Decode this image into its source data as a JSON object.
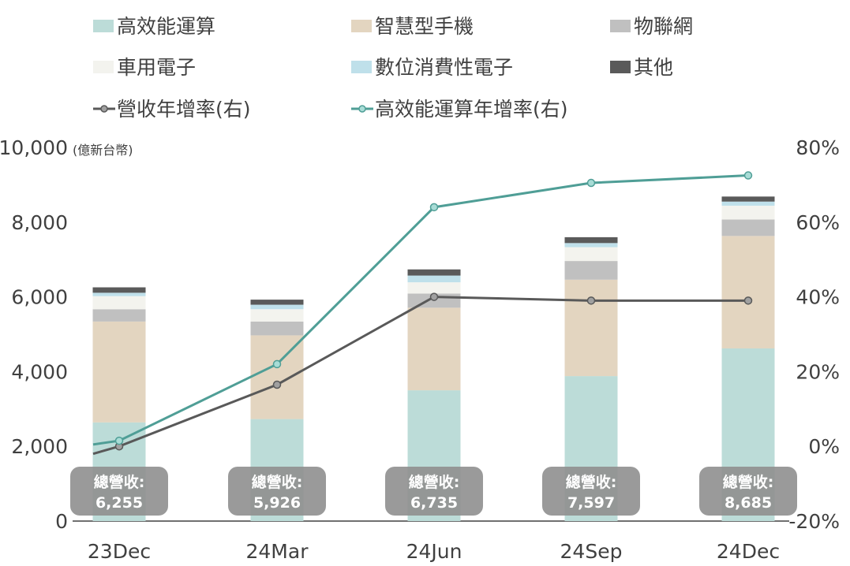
{
  "chart_data": {
    "type": "bar",
    "stacked": true,
    "categories": [
      "23Dec",
      "24Mar",
      "24Jun",
      "24Sep",
      "24Dec"
    ],
    "unit_label": "(億新台幣)",
    "y_left": {
      "min": 0,
      "max": 10000,
      "ticks": [
        "0",
        "2,000",
        "4,000",
        "6,000",
        "8,000",
        "10,000"
      ]
    },
    "y_right": {
      "min": -0.2,
      "max": 0.8,
      "ticks": [
        "-20%",
        "0%",
        "20%",
        "40%",
        "60%",
        "80%"
      ]
    },
    "series": [
      {
        "name": "高效能運算",
        "color": "#bcdcd8",
        "values": [
          2640,
          2730,
          3500,
          3880,
          4620
        ]
      },
      {
        "name": "智慧型手機",
        "color": "#e3d5c0",
        "values": [
          2700,
          2240,
          2210,
          2580,
          3010
        ]
      },
      {
        "name": "物聯網",
        "color": "#c0c0c0",
        "values": [
          330,
          370,
          380,
          500,
          440
        ]
      },
      {
        "name": "車用電子",
        "color": "#f3f3ee",
        "values": [
          350,
          330,
          300,
          370,
          370
        ]
      },
      {
        "name": "數位消費性電子",
        "color": "#bfe0ea",
        "values": [
          90,
          120,
          180,
          110,
          110
        ]
      },
      {
        "name": "其他",
        "color": "#5a5a5a",
        "values": [
          145,
          136,
          165,
          157,
          135
        ]
      }
    ],
    "lines": [
      {
        "name": "營收年增率(右)",
        "color": "#595959",
        "values": [
          0.0,
          0.165,
          0.4,
          0.39,
          0.39
        ],
        "pre_value": -0.02
      },
      {
        "name": "高效能運算年增率(右)",
        "color": "#4f9e96",
        "values": [
          0.015,
          0.22,
          0.64,
          0.705,
          0.725
        ],
        "pre_value": 0.005
      }
    ],
    "totals_label": "總營收:",
    "totals": [
      "6,255",
      "5,926",
      "6,735",
      "7,597",
      "8,685"
    ],
    "legend_position": "top"
  }
}
